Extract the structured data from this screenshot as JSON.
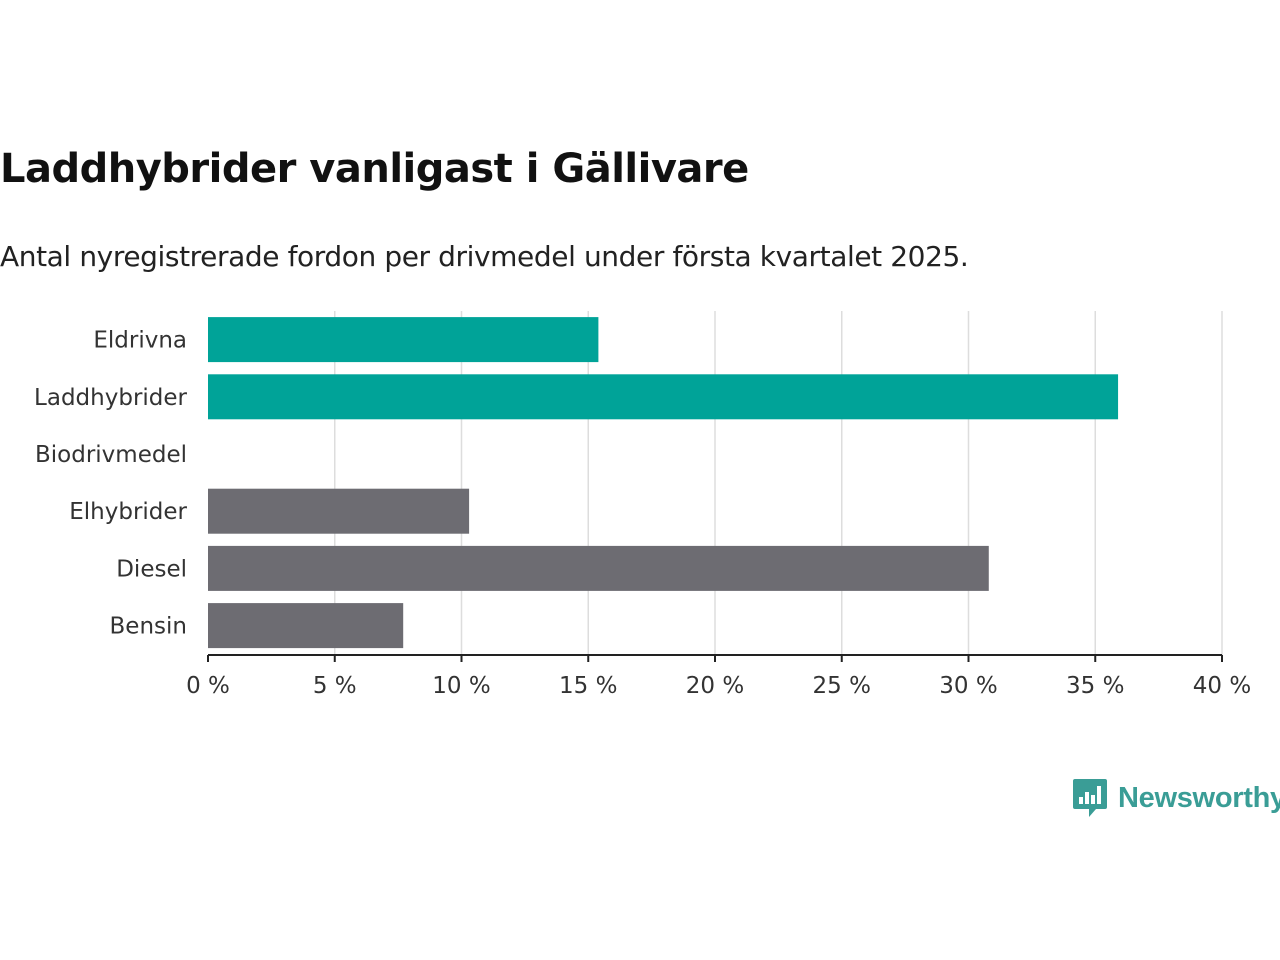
{
  "title": "Laddhybrider vanligast i Gällivare",
  "subtitle": "Antal nyregistrerade fordon per drivmedel under första kvartalet 2025.",
  "logo_text": "Newsworthy",
  "colors": {
    "highlight": "#00a398",
    "default": "#6d6c72",
    "grid": "#dddddd",
    "axis": "#222222"
  },
  "chart_data": {
    "type": "bar",
    "orientation": "horizontal",
    "categories": [
      "Eldrivna",
      "Laddhybrider",
      "Biodrivmedel",
      "Elhybrider",
      "Diesel",
      "Bensin"
    ],
    "values": [
      15.4,
      35.9,
      0,
      10.3,
      30.8,
      7.7
    ],
    "bar_colors": [
      "#00a398",
      "#00a398",
      "#6d6c72",
      "#6d6c72",
      "#6d6c72",
      "#6d6c72"
    ],
    "xlim": [
      0,
      40
    ],
    "xticks": [
      0,
      5,
      10,
      15,
      20,
      25,
      30,
      35,
      40
    ],
    "xtick_labels": [
      "0 %",
      "5 %",
      "10 %",
      "15 %",
      "20 %",
      "25 %",
      "30 %",
      "35 %",
      "40 %"
    ],
    "grid": true
  }
}
